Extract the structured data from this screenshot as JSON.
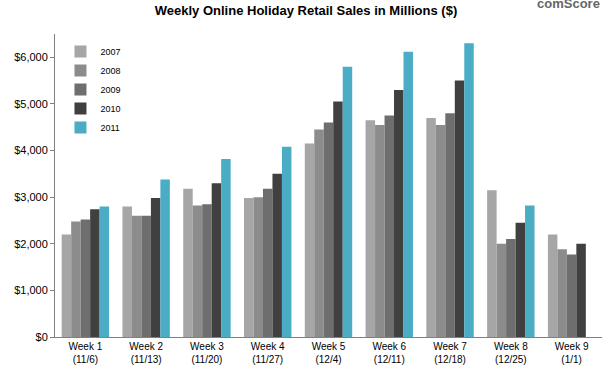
{
  "chart_data": {
    "type": "bar",
    "title": "Weekly Online Holiday Retail Sales in Millions ($)",
    "annotations": [
      "comScore"
    ],
    "categories": [
      "Week 1 (11/6)",
      "Week 2 (11/13)",
      "Week 3 (11/20)",
      "Week 4 (11/27)",
      "Week 5 (12/4)",
      "Week 6 (12/11)",
      "Week 7 (12/18)",
      "Week 8 (12/25)",
      "Week 9 (1/1)"
    ],
    "series": [
      {
        "name": "2007",
        "color": "#a6a6a6",
        "values": [
          2200,
          2800,
          3180,
          2980,
          4150,
          4650,
          4700,
          3150,
          2200
        ]
      },
      {
        "name": "2008",
        "color": "#8c8c8c",
        "values": [
          2480,
          2600,
          2820,
          3000,
          4450,
          4550,
          4550,
          2000,
          1880
        ]
      },
      {
        "name": "2009",
        "color": "#6e6e6e",
        "values": [
          2520,
          2600,
          2850,
          3180,
          4600,
          4750,
          4800,
          2100,
          1770
        ]
      },
      {
        "name": "2010",
        "color": "#404040",
        "values": [
          2740,
          2980,
          3300,
          3500,
          5050,
          5300,
          5500,
          2450,
          2000
        ]
      },
      {
        "name": "2011",
        "color": "#4bacc6",
        "values": [
          2800,
          3380,
          3820,
          4080,
          5800,
          6120,
          6300,
          2820,
          null
        ]
      }
    ],
    "ylim": [
      0,
      6500
    ],
    "yticks": [
      {
        "value": 0,
        "label": "$0"
      },
      {
        "value": 1000,
        "label": "$1,000"
      },
      {
        "value": 2000,
        "label": "$2,000"
      },
      {
        "value": 3000,
        "label": "$3,000"
      },
      {
        "value": 4000,
        "label": "$4,000"
      },
      {
        "value": 5000,
        "label": "$5,000"
      },
      {
        "value": 6000,
        "label": "$6,000"
      }
    ],
    "grid": false,
    "legend": "top-left"
  }
}
